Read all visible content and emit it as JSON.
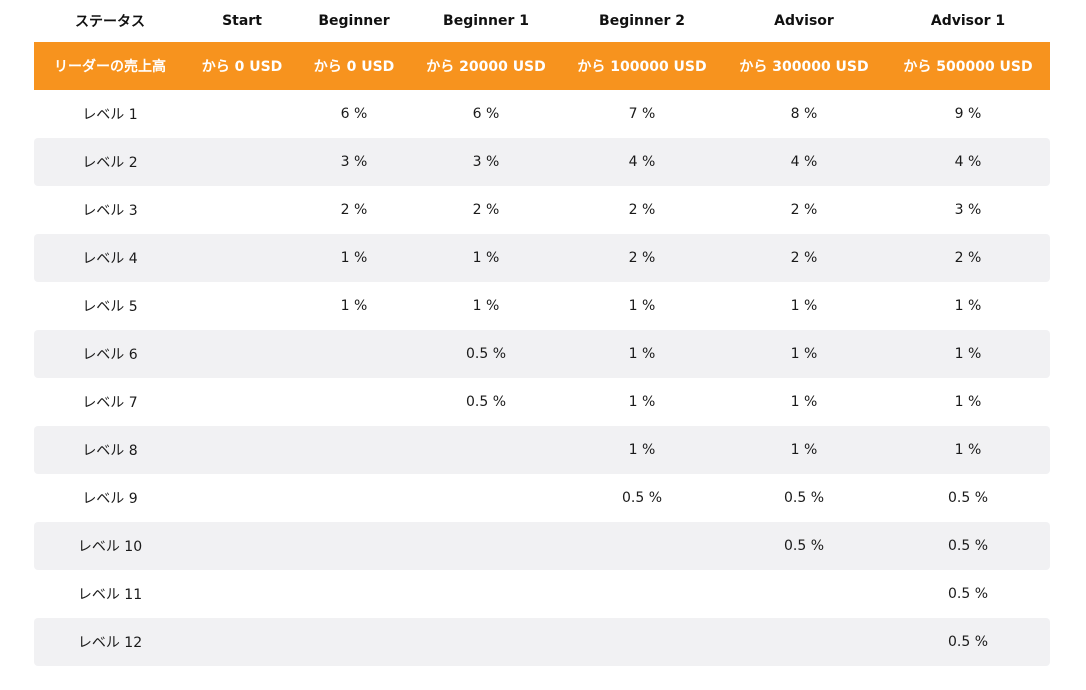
{
  "columns": [
    "ステータス",
    "Start",
    "Beginner",
    "Beginner 1",
    "Beginner 2",
    "Advisor",
    "Advisor 1"
  ],
  "subheader": [
    "リーダーの売上高",
    "から 0 USD",
    "から 0 USD",
    "から 20000 USD",
    "から 100000 USD",
    "から 300000 USD",
    "から 500000 USD"
  ],
  "rows": [
    [
      "レベル 1",
      "",
      "6 %",
      "6 %",
      "7 %",
      "8 %",
      "9 %"
    ],
    [
      "レベル 2",
      "",
      "3 %",
      "3 %",
      "4 %",
      "4 %",
      "4 %"
    ],
    [
      "レベル 3",
      "",
      "2 %",
      "2 %",
      "2 %",
      "2 %",
      "3 %"
    ],
    [
      "レベル 4",
      "",
      "1 %",
      "1 %",
      "2 %",
      "2 %",
      "2 %"
    ],
    [
      "レベル 5",
      "",
      "1 %",
      "1 %",
      "1 %",
      "1 %",
      "1 %"
    ],
    [
      "レベル 6",
      "",
      "",
      "0.5 %",
      "1 %",
      "1 %",
      "1 %"
    ],
    [
      "レベル 7",
      "",
      "",
      "0.5 %",
      "1 %",
      "1 %",
      "1 %"
    ],
    [
      "レベル 8",
      "",
      "",
      "",
      "1 %",
      "1 %",
      "1 %"
    ],
    [
      "レベル 9",
      "",
      "",
      "",
      "0.5 %",
      "0.5 %",
      "0.5 %"
    ],
    [
      "レベル 10",
      "",
      "",
      "",
      "",
      "0.5 %",
      "0.5 %"
    ],
    [
      "レベル 11",
      "",
      "",
      "",
      "",
      "",
      "0.5 %"
    ],
    [
      "レベル 12",
      "",
      "",
      "",
      "",
      "",
      "0.5 %"
    ]
  ],
  "colors": {
    "accent": "#f7931e",
    "stripe": "#f1f1f3"
  }
}
